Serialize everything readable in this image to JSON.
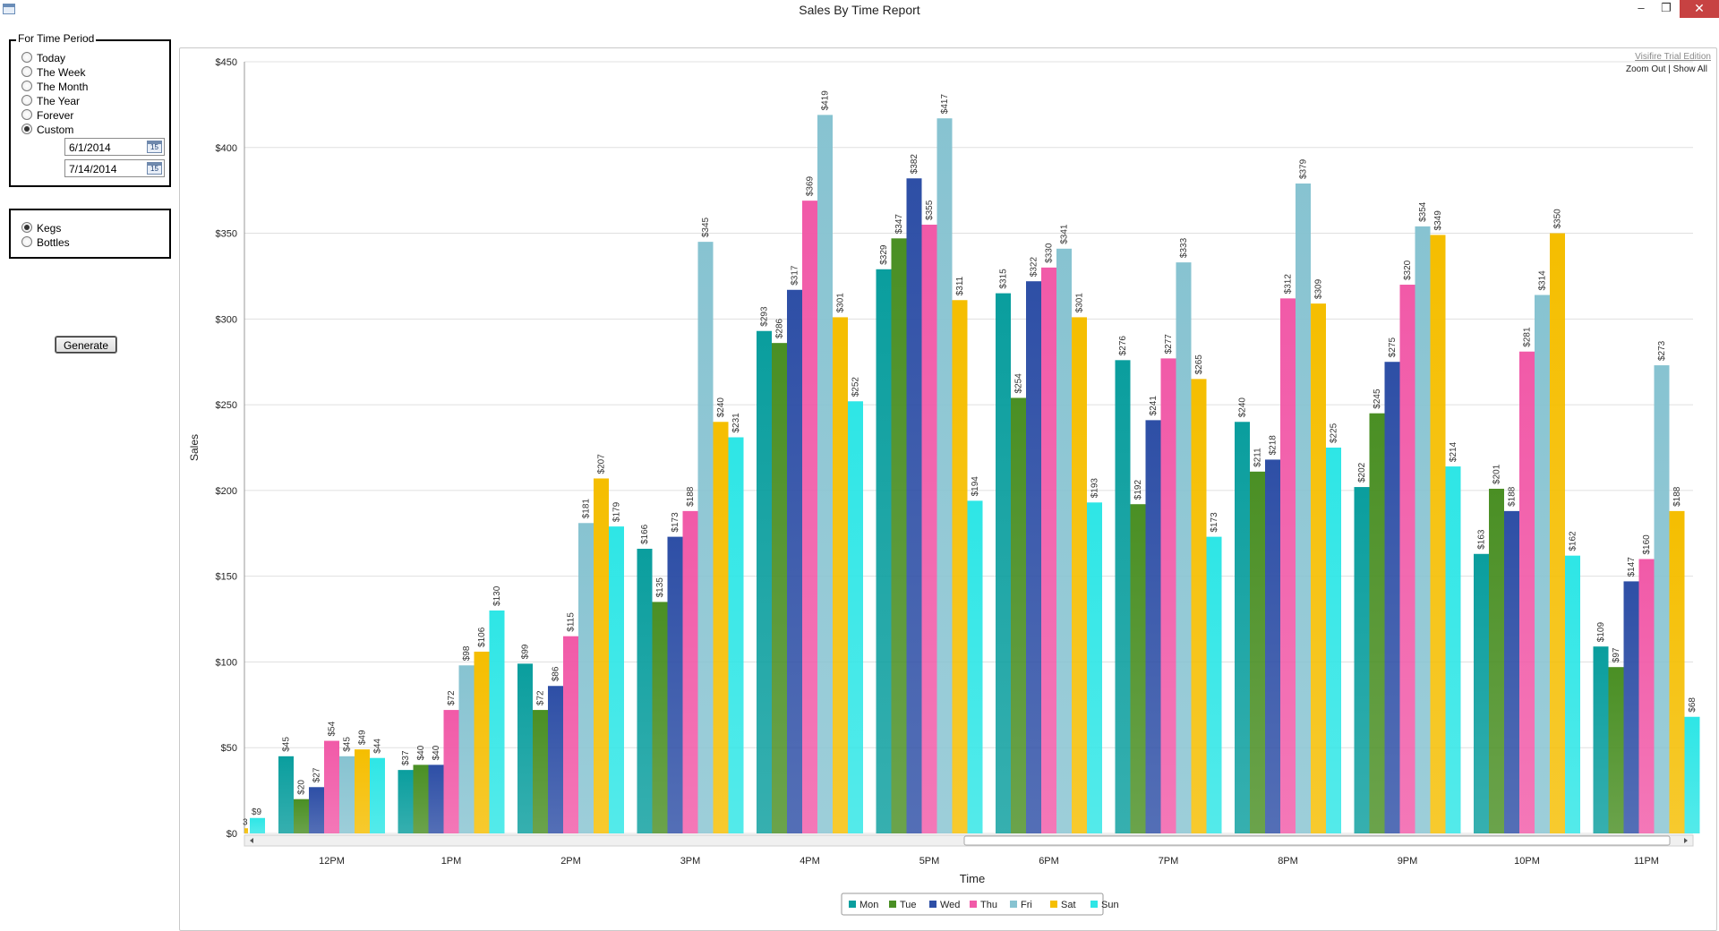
{
  "window": {
    "title": "Sales By Time Report",
    "minimize_glyph": "–",
    "maximize_glyph": "❐",
    "close_glyph": "✕"
  },
  "period_group": {
    "label": "For Time Period",
    "options": [
      {
        "label": "Today",
        "selected": false
      },
      {
        "label": "The Week",
        "selected": false
      },
      {
        "label": "The Month",
        "selected": false
      },
      {
        "label": "The Year",
        "selected": false
      },
      {
        "label": "Forever",
        "selected": false
      },
      {
        "label": "Custom",
        "selected": true
      }
    ],
    "start_date": "6/1/2014",
    "end_date": "7/14/2014",
    "calendar_glyph": "15"
  },
  "type_group": {
    "options": [
      {
        "label": "Kegs",
        "selected": true
      },
      {
        "label": "Bottles",
        "selected": false
      }
    ]
  },
  "generate_label": "Generate",
  "chart_header": {
    "watermark": "Visifire Trial Edition",
    "zoom_out": "Zoom Out",
    "separator": "|",
    "show_all": "Show All"
  },
  "chart_data": {
    "type": "bar",
    "title": "",
    "xlabel": "Time",
    "ylabel": "Sales",
    "ylim": [
      0,
      450
    ],
    "yticks": [
      0,
      50,
      100,
      150,
      200,
      250,
      300,
      350,
      400,
      450
    ],
    "ytick_labels": [
      "$0",
      "$50",
      "$100",
      "$150",
      "$200",
      "$250",
      "$300",
      "$350",
      "$400",
      "$450"
    ],
    "grid": true,
    "legend_position": "bottom-center",
    "categories": [
      "12PM",
      "1PM",
      "2PM",
      "3PM",
      "4PM",
      "5PM",
      "6PM",
      "7PM",
      "8PM",
      "9PM",
      "10PM",
      "11PM"
    ],
    "series": [
      {
        "name": "Mon",
        "color": "#0a9e9e",
        "values": [
          45,
          37,
          99,
          166,
          293,
          329,
          315,
          276,
          240,
          202,
          163,
          109
        ]
      },
      {
        "name": "Tue",
        "color": "#4a8f24",
        "values": [
          20,
          40,
          72,
          135,
          286,
          347,
          254,
          192,
          211,
          245,
          201,
          97
        ]
      },
      {
        "name": "Wed",
        "color": "#2e4fa6",
        "values": [
          27,
          40,
          86,
          173,
          317,
          382,
          322,
          241,
          218,
          275,
          188,
          147
        ]
      },
      {
        "name": "Thu",
        "color": "#f15aa8",
        "values": [
          54,
          72,
          115,
          188,
          369,
          355,
          330,
          277,
          312,
          320,
          281,
          160
        ]
      },
      {
        "name": "Fri",
        "color": "#87c3d1",
        "values": [
          45,
          98,
          181,
          345,
          419,
          417,
          341,
          333,
          379,
          354,
          314,
          273
        ]
      },
      {
        "name": "Sat",
        "color": "#f5be00",
        "values": [
          49,
          106,
          207,
          240,
          301,
          311,
          301,
          265,
          309,
          349,
          350,
          188
        ]
      },
      {
        "name": "Sun",
        "color": "#2ee6e6",
        "values": [
          44,
          130,
          179,
          231,
          252,
          194,
          193,
          173,
          225,
          214,
          162,
          68
        ]
      }
    ],
    "partial_bars": [
      {
        "series": "Sat",
        "value": 3,
        "label": "3"
      },
      {
        "series": "Sun",
        "value": 9,
        "label": "$9"
      }
    ],
    "label_prefix": "$"
  }
}
